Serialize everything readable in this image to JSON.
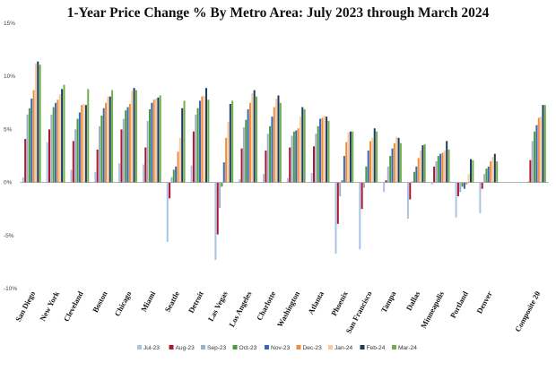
{
  "chart_data": {
    "type": "bar",
    "title": "1-Year Price Change % By Metro Area: July 2023 through March 2024",
    "xlabel": "",
    "ylabel": "",
    "ylim": [
      -10,
      15
    ],
    "yticks": [
      15,
      10,
      5,
      0,
      -5,
      -10
    ],
    "ytick_labels": [
      "15%",
      "10%",
      "5%",
      "0%",
      "-5%",
      "-10%"
    ],
    "grid": false,
    "legend_position": "bottom",
    "categories": [
      "San Diego",
      "New York",
      "Cleveland",
      "Boston",
      "Chicago",
      "Miami",
      "Seattle",
      "Detroit",
      "Las Vegas",
      "Los Angeles",
      "Charlotte",
      "Washington",
      "Atlanta",
      "Phoenix",
      "San Francisco",
      "Tampa",
      "Dallas",
      "Minneapolis",
      "Portland",
      "Denver",
      "",
      "Composite 20"
    ],
    "series": [
      {
        "name": "Jul-23",
        "color": "#a9c4e4",
        "values": [
          0.5,
          3.8,
          1.2,
          1.0,
          1.8,
          1.7,
          -5.6,
          1.6,
          -7.3,
          0.3,
          0.8,
          0.4,
          0.9,
          -6.7,
          -6.3,
          -0.9,
          -3.4,
          -0.2,
          -3.3,
          -2.9,
          0,
          0.1
        ]
      },
      {
        "name": "Aug-23",
        "color": "#b0152e",
        "values": [
          4.1,
          5.0,
          3.9,
          3.1,
          5.0,
          3.3,
          -1.5,
          4.8,
          -4.9,
          3.2,
          3.0,
          3.3,
          3.4,
          -3.9,
          -2.5,
          0.2,
          -1.6,
          1.5,
          -1.3,
          -0.6,
          0,
          2.1
        ]
      },
      {
        "name": "Sep-23",
        "color": "#9fb0c6",
        "values": [
          6.4,
          6.4,
          5.0,
          5.3,
          6.0,
          5.8,
          0.5,
          6.4,
          -2.4,
          5.2,
          4.6,
          4.4,
          4.6,
          -1.3,
          -0.5,
          1.5,
          0.1,
          2.0,
          -0.9,
          0.8,
          0,
          3.9
        ]
      },
      {
        "name": "Oct-23",
        "color": "#4e9a3b",
        "values": [
          7.0,
          7.1,
          6.0,
          6.3,
          6.8,
          6.9,
          1.2,
          7.0,
          -0.4,
          5.9,
          5.3,
          4.8,
          5.3,
          0.2,
          1.5,
          2.5,
          1.0,
          2.5,
          -0.4,
          1.3,
          0,
          4.8
        ]
      },
      {
        "name": "Nov-23",
        "color": "#3667b8",
        "values": [
          7.9,
          7.5,
          6.6,
          7.0,
          7.1,
          7.5,
          1.5,
          7.7,
          1.9,
          6.9,
          6.2,
          4.9,
          6.0,
          2.5,
          3.0,
          3.2,
          1.5,
          2.7,
          -0.6,
          1.5,
          0,
          5.4
        ]
      },
      {
        "name": "Dec-23",
        "color": "#ef8d3c",
        "values": [
          8.7,
          7.8,
          7.3,
          7.5,
          7.4,
          7.8,
          2.9,
          8.1,
          4.2,
          7.5,
          7.1,
          5.1,
          6.1,
          3.8,
          3.9,
          3.7,
          2.3,
          2.8,
          -0.2,
          2.0,
          0,
          6.1
        ]
      },
      {
        "name": "Jan-24",
        "color": "#f3cba0",
        "values": [
          11.2,
          8.3,
          7.4,
          8.1,
          8.6,
          7.9,
          4.2,
          8.2,
          5.7,
          8.4,
          7.9,
          6.2,
          6.3,
          4.7,
          4.2,
          4.3,
          3.0,
          3.0,
          0.8,
          2.4,
          0,
          6.2
        ]
      },
      {
        "name": "Feb-24",
        "color": "#1e3a60",
        "values": [
          11.4,
          8.8,
          7.3,
          8.1,
          8.9,
          8.0,
          7.0,
          8.9,
          7.4,
          8.7,
          8.2,
          7.1,
          6.2,
          4.8,
          5.1,
          4.2,
          3.5,
          3.9,
          2.2,
          2.7,
          0,
          7.3
        ]
      },
      {
        "name": "Mar-24",
        "color": "#6fb04b",
        "values": [
          11.1,
          9.2,
          8.8,
          8.7,
          8.7,
          8.2,
          7.7,
          7.8,
          7.7,
          8.1,
          7.5,
          6.9,
          5.8,
          4.8,
          4.8,
          3.7,
          3.6,
          3.1,
          2.1,
          2.0,
          0,
          7.3
        ]
      }
    ]
  }
}
